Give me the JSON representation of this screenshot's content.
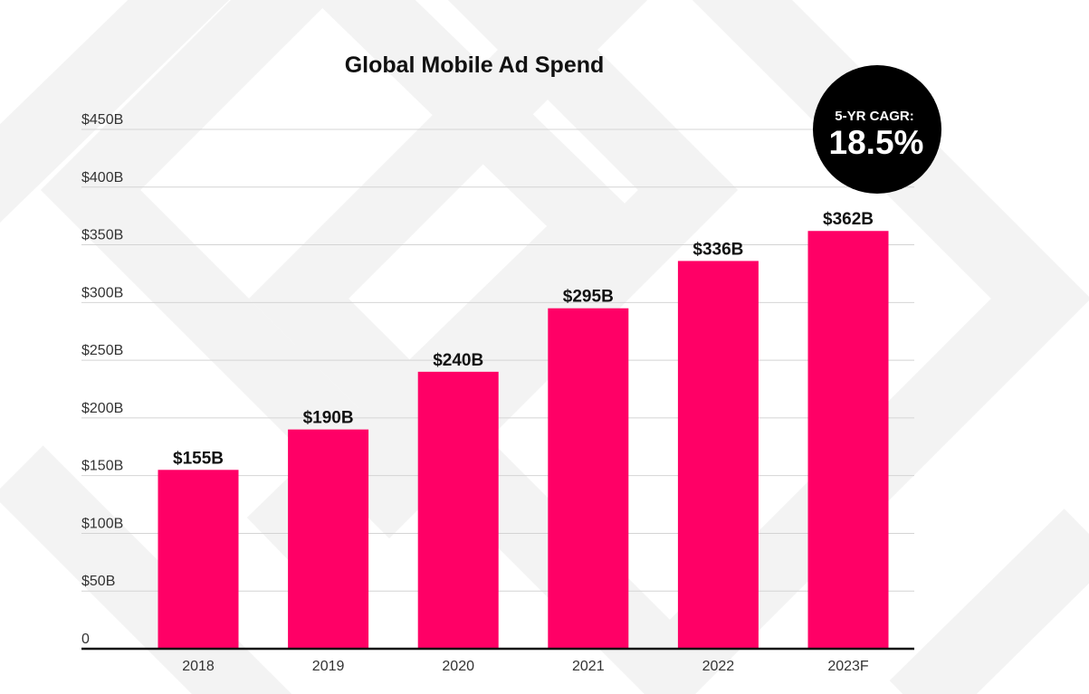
{
  "chart_data": {
    "type": "bar",
    "title": "Global Mobile Ad Spend",
    "categories": [
      "2018",
      "2019",
      "2020",
      "2021",
      "2022",
      "2023F"
    ],
    "values": [
      155,
      190,
      240,
      295,
      336,
      362
    ],
    "data_labels": [
      "$155B",
      "$190B",
      "$240B",
      "$295B",
      "$336B",
      "$362B"
    ],
    "unit": "B USD",
    "yticks": [
      0,
      50,
      100,
      150,
      200,
      250,
      300,
      350,
      400,
      450
    ],
    "ytick_labels": [
      "0",
      "$50B",
      "$100B",
      "$150B",
      "$200B",
      "$250B",
      "$300B",
      "$350B",
      "$400B",
      "$450B"
    ],
    "ylim": [
      0,
      450
    ],
    "xlabel": "",
    "ylabel": "",
    "grid": true,
    "legend": "none",
    "bar_color": "#ff0066",
    "annotation": {
      "label": "5-YR CAGR:",
      "value": "18.5%",
      "background": "#000000",
      "text_color": "#ffffff",
      "placement": "top-right"
    }
  },
  "colors": {
    "background": "#ffffff",
    "watermark": "#f4f4f4",
    "grid": "#d4d4d4",
    "axis": "#111111"
  }
}
